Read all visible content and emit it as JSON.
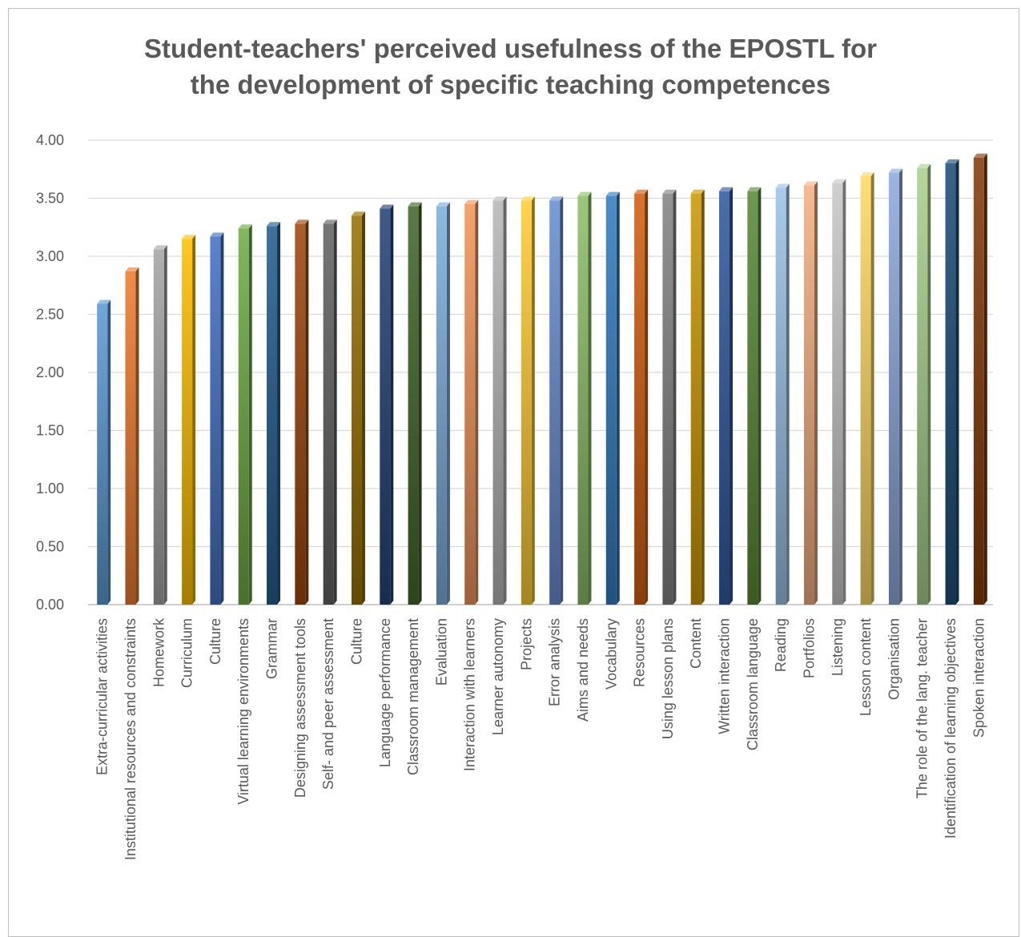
{
  "chart_data": {
    "type": "bar",
    "title": "Student-teachers' perceived usefulness of the EPOSTL for\nthe development of specific teaching competences",
    "xlabel": "",
    "ylabel": "",
    "ylim": [
      0,
      4
    ],
    "yticks": [
      "0.00",
      "0.50",
      "1.00",
      "1.50",
      "2.00",
      "2.50",
      "3.00",
      "3.50",
      "4.00"
    ],
    "grid": true,
    "legend": "none",
    "categories": [
      "Extra-curricular activities",
      "Institutional resources and constraints",
      "Homework",
      "Curriculum",
      "Culture",
      "Virtual learning environments",
      "Grammar",
      "Designing assessment tools",
      "Self- and peer assessment",
      "Culture",
      "Language performance",
      "Classroom management",
      "Evaluation",
      "Interaction with learners",
      "Learner autonomy",
      "Projects",
      "Error analysis",
      "Aims and needs",
      "Vocabulary",
      "Resources",
      "Using lesson plans",
      "Content",
      "Written interaction",
      "Classroom language",
      "Reading",
      "Portfolios",
      "Listening",
      "Lesson content",
      "Organisation",
      "The role of the lang. teacher",
      "Identification of learning objectives",
      "Spoken interaction"
    ],
    "values": [
      2.59,
      2.87,
      3.06,
      3.15,
      3.17,
      3.24,
      3.26,
      3.28,
      3.28,
      3.35,
      3.41,
      3.43,
      3.43,
      3.45,
      3.48,
      3.48,
      3.48,
      3.52,
      3.52,
      3.54,
      3.54,
      3.54,
      3.56,
      3.56,
      3.59,
      3.61,
      3.63,
      3.69,
      3.72,
      3.76,
      3.8,
      3.85
    ],
    "colors": [
      "#5b9bd5",
      "#ed7d31",
      "#a5a5a5",
      "#ffc000",
      "#4472c4",
      "#70ad47",
      "#255e91",
      "#9e480e",
      "#636363",
      "#997300",
      "#264478",
      "#43682b",
      "#7cafdd",
      "#f1975a",
      "#b7b7b7",
      "#ffcd33",
      "#698ed0",
      "#8cc168",
      "#327dc2",
      "#d26012",
      "#848484",
      "#cc9a00",
      "#335aa1",
      "#5a8a39",
      "#9dc3e6",
      "#f4b183",
      "#c9c9c9",
      "#ffd966",
      "#8faadc",
      "#a9d18e",
      "#1f4e79",
      "#843c0c"
    ]
  }
}
